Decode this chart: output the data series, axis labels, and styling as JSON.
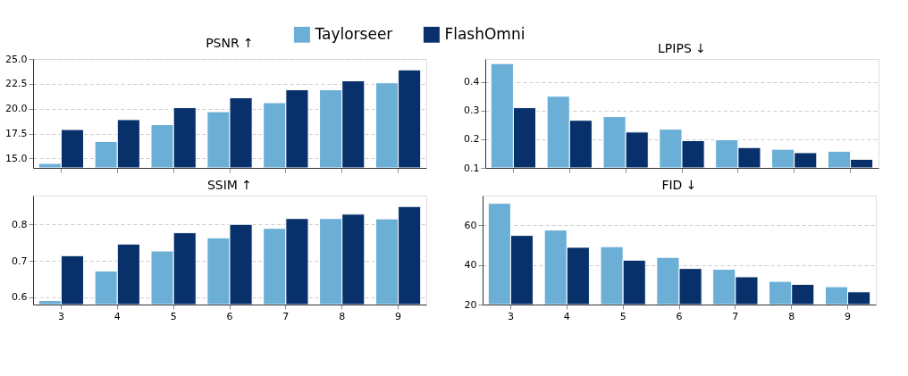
{
  "chart_data": [
    {
      "type": "bar",
      "title": "PSNR ↑",
      "categories": [
        "3",
        "4",
        "5",
        "6",
        "7",
        "8",
        "9"
      ],
      "series": [
        {
          "name": "Taylorseer",
          "color": "#6baed6",
          "values": [
            14.5,
            16.7,
            18.4,
            19.7,
            20.6,
            21.9,
            22.6
          ]
        },
        {
          "name": "FlashOmni",
          "color": "#08306b",
          "values": [
            17.9,
            18.9,
            20.1,
            21.1,
            21.9,
            22.8,
            23.9
          ]
        }
      ],
      "ylim": [
        14.05,
        25
      ],
      "yticks": [
        {
          "value": 15,
          "label": "15.0"
        },
        17.5,
        {
          "value": 20,
          "label": "20.0"
        },
        22.5,
        {
          "value": 25,
          "label": "25.0"
        }
      ],
      "grid": "y",
      "legend": "top",
      "tick_labels": "y"
    },
    {
      "type": "bar",
      "title": "LPIPS ↓",
      "categories": [
        "3",
        "4",
        "5",
        "6",
        "7",
        "8",
        "9"
      ],
      "series": [
        {
          "name": "Taylorseer",
          "color": "#6baed6",
          "values": [
            0.464,
            0.35,
            0.279,
            0.235,
            0.198,
            0.165,
            0.158
          ]
        },
        {
          "name": "FlashOmni",
          "color": "#08306b",
          "values": [
            0.31,
            0.266,
            0.225,
            0.195,
            0.171,
            0.153,
            0.13
          ]
        }
      ],
      "ylim": [
        0.1,
        0.48
      ],
      "yticks": [
        0.1,
        0.2,
        0.3,
        0.4
      ],
      "grid": "y",
      "tick_labels": "y"
    },
    {
      "type": "bar",
      "title": "SSIM ↑",
      "categories": [
        "3",
        "4",
        "5",
        "6",
        "7",
        "8",
        "9"
      ],
      "series": [
        {
          "name": "Taylorseer",
          "color": "#6baed6",
          "values": [
            0.591,
            0.672,
            0.727,
            0.763,
            0.789,
            0.816,
            0.815
          ]
        },
        {
          "name": "FlashOmni",
          "color": "#08306b",
          "values": [
            0.714,
            0.746,
            0.777,
            0.8,
            0.816,
            0.828,
            0.849
          ]
        }
      ],
      "ylim": [
        0.58,
        0.879
      ],
      "yticks": [
        0.6,
        0.7,
        0.8
      ],
      "grid": "y"
    },
    {
      "type": "bar",
      "title": "FID ↓",
      "categories": [
        "3",
        "4",
        "5",
        "6",
        "7",
        "8",
        "9"
      ],
      "series": [
        {
          "name": "Taylorseer",
          "color": "#6baed6",
          "values": [
            71.1,
            57.6,
            49.2,
            43.8,
            37.8,
            31.7,
            29.0
          ]
        },
        {
          "name": "FlashOmni",
          "color": "#08306b",
          "values": [
            54.9,
            48.9,
            42.4,
            38.2,
            34.0,
            30.2,
            26.4
          ]
        }
      ],
      "ylim": [
        20,
        75
      ],
      "yticks": [
        20,
        40,
        60
      ],
      "grid": "y"
    }
  ]
}
